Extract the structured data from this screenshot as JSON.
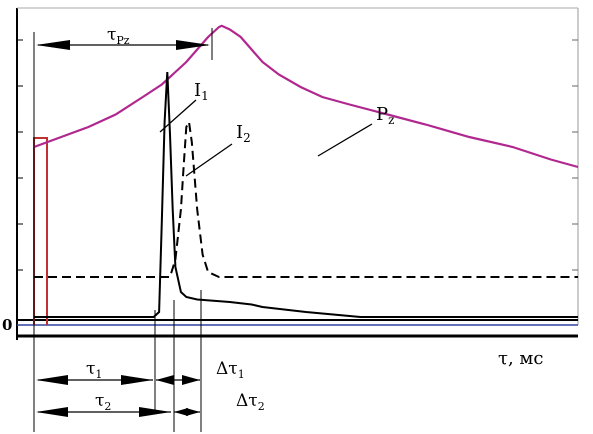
{
  "chart_data": {
    "type": "line",
    "x_label": "τ, мс",
    "zero_tick": "0",
    "series": [
      {
        "name": "P",
        "name_sub": "z",
        "color": "#b0288f",
        "style": "solid",
        "points": [
          [
            0,
            0.7
          ],
          [
            0.05,
            0.74
          ],
          [
            0.1,
            0.78
          ],
          [
            0.15,
            0.83
          ],
          [
            0.2,
            0.9
          ],
          [
            0.235,
            0.95
          ],
          [
            0.245,
            0.97
          ],
          [
            0.26,
            1.0
          ],
          [
            0.28,
            1.04
          ],
          [
            0.3,
            1.09
          ],
          [
            0.32,
            1.14
          ],
          [
            0.34,
            1.18
          ],
          [
            0.345,
            1.185
          ],
          [
            0.36,
            1.17
          ],
          [
            0.38,
            1.14
          ],
          [
            0.4,
            1.09
          ],
          [
            0.42,
            1.04
          ],
          [
            0.45,
            0.99
          ],
          [
            0.49,
            0.94
          ],
          [
            0.53,
            0.9
          ],
          [
            0.58,
            0.87
          ],
          [
            0.65,
            0.83
          ],
          [
            0.72,
            0.79
          ],
          [
            0.8,
            0.74
          ],
          [
            0.88,
            0.7
          ],
          [
            0.95,
            0.65
          ],
          [
            1.0,
            0.62
          ]
        ]
      },
      {
        "name": "I",
        "name_sub": "1",
        "color": "#000000",
        "style": "solid",
        "points": [
          [
            0,
            0.02
          ],
          [
            0.22,
            0.02
          ],
          [
            0.23,
            0.04
          ],
          [
            0.235,
            0.4
          ],
          [
            0.24,
            0.8
          ],
          [
            0.245,
            1.0
          ],
          [
            0.25,
            0.75
          ],
          [
            0.255,
            0.45
          ],
          [
            0.26,
            0.22
          ],
          [
            0.27,
            0.12
          ],
          [
            0.28,
            0.1
          ],
          [
            0.3,
            0.09
          ],
          [
            0.33,
            0.085
          ],
          [
            0.36,
            0.08
          ],
          [
            0.4,
            0.07
          ],
          [
            0.42,
            0.06
          ],
          [
            0.46,
            0.05
          ],
          [
            0.5,
            0.04
          ],
          [
            0.55,
            0.03
          ],
          [
            0.6,
            0.02
          ],
          [
            1.0,
            0.02
          ]
        ]
      },
      {
        "name": "I",
        "name_sub": "2",
        "color": "#000000",
        "style": "dashed",
        "points": [
          [
            0,
            0.18
          ],
          [
            0.25,
            0.18
          ],
          [
            0.26,
            0.25
          ],
          [
            0.27,
            0.45
          ],
          [
            0.275,
            0.62
          ],
          [
            0.28,
            0.78
          ],
          [
            0.285,
            0.8
          ],
          [
            0.29,
            0.72
          ],
          [
            0.3,
            0.45
          ],
          [
            0.31,
            0.27
          ],
          [
            0.32,
            0.2
          ],
          [
            0.34,
            0.18
          ],
          [
            1.0,
            0.18
          ]
        ]
      }
    ],
    "markers": [
      "τ",
      "τ",
      "Δτ",
      "Δτ"
    ],
    "marker_subs": [
      "Pz",
      "1",
      "1",
      "2"
    ],
    "tau_labels": [
      "τ",
      "τ"
    ],
    "tau_subs": [
      "1",
      "2"
    ]
  }
}
